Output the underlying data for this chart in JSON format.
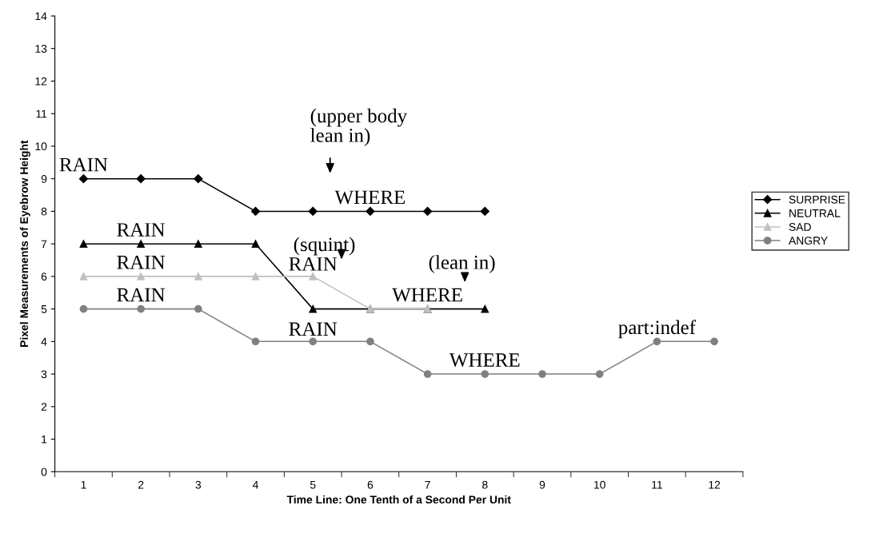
{
  "chart_data": {
    "type": "line",
    "xlabel": "Time Line: One Tenth of a Second Per Unit",
    "ylabel": "Pixel Measurements of Eyebrow Height",
    "categories": [
      "1",
      "2",
      "3",
      "4",
      "5",
      "6",
      "7",
      "8",
      "9",
      "10",
      "11",
      "12"
    ],
    "ylim": [
      0,
      14
    ],
    "yticks": [
      0,
      1,
      2,
      3,
      4,
      5,
      6,
      7,
      8,
      9,
      10,
      11,
      12,
      13,
      14
    ],
    "legend": "right",
    "series": [
      {
        "name": "SURPRISE",
        "color": "#000000",
        "marker": "diamond",
        "values": [
          9,
          9,
          9,
          8,
          8,
          8,
          8,
          8,
          null,
          null,
          null,
          null
        ]
      },
      {
        "name": "NEUTRAL",
        "color": "#000000",
        "marker": "triangle",
        "values": [
          7,
          7,
          7,
          7,
          5,
          5,
          5,
          5,
          null,
          null,
          null,
          null
        ]
      },
      {
        "name": "SAD",
        "color": "#c0c0c0",
        "marker": "triangle",
        "values": [
          6,
          6,
          6,
          6,
          6,
          5,
          5,
          null,
          null,
          null,
          null,
          null
        ]
      },
      {
        "name": "ANGRY",
        "color": "#808080",
        "marker": "circle",
        "values": [
          5,
          5,
          5,
          4,
          4,
          4,
          3,
          3,
          3,
          3,
          4,
          4
        ]
      }
    ],
    "annotations": [
      {
        "text": "RAIN",
        "x": "1",
        "y": 9.1
      },
      {
        "text": "RAIN",
        "x": "2",
        "y": 7.1
      },
      {
        "text": "RAIN",
        "x": "2",
        "y": 6.1
      },
      {
        "text": "RAIN",
        "x": "2",
        "y": 5.1
      },
      {
        "text": "RAIN",
        "x": "5",
        "y": 6.05
      },
      {
        "text": "RAIN",
        "x": "5",
        "y": 4.05
      },
      {
        "text": "WHERE",
        "x": "6",
        "y": 8.1
      },
      {
        "text": "WHERE",
        "x": "7",
        "y": 5.1
      },
      {
        "text": "WHERE",
        "x": "8",
        "y": 3.1
      },
      {
        "text": "part:indef",
        "x": "11",
        "y": 4.1
      },
      "(upper body\nlean in)",
      "(squint)",
      "(lean in)"
    ]
  }
}
